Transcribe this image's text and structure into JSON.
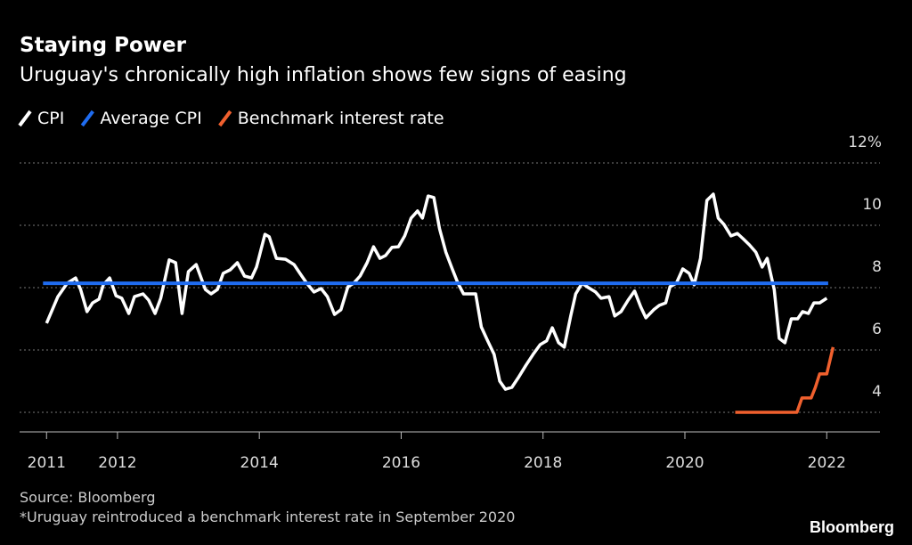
{
  "chart_data": {
    "type": "line",
    "title": "Staying Power",
    "subtitle": "Uruguay's chronically high inflation shows few signs of easing",
    "source": "Source: Bloomberg",
    "note": "*Uruguay reintroduced a benchmark interest rate in September 2020",
    "brand": "Bloomberg",
    "xlim": [
      2010.62,
      2022.75
    ],
    "xticks": [
      2011,
      2012,
      2014,
      2016,
      2018,
      2020,
      2022
    ],
    "ylim": [
      3.37,
      12
    ],
    "yticks": [
      4,
      6,
      8,
      10,
      {
        "value": 12,
        "label": "12%"
      }
    ],
    "grid": true,
    "series": [
      {
        "name": "CPI",
        "color": "#ffffff",
        "x": [
          2011.0,
          2011.16,
          2011.29,
          2011.41,
          2011.48,
          2011.57,
          2011.65,
          2011.74,
          2011.8,
          2011.89,
          2011.98,
          2012.06,
          2012.16,
          2012.24,
          2012.36,
          2012.44,
          2012.53,
          2012.61,
          2012.73,
          2012.82,
          2012.91,
          2013.0,
          2013.11,
          2013.24,
          2013.32,
          2013.41,
          2013.49,
          2013.59,
          2013.69,
          2013.79,
          2013.89,
          2013.96,
          2014.08,
          2014.14,
          2014.24,
          2014.37,
          2014.49,
          2014.58,
          2014.67,
          2014.77,
          2014.87,
          2014.96,
          2015.06,
          2015.15,
          2015.25,
          2015.33,
          2015.42,
          2015.52,
          2015.61,
          2015.7,
          2015.78,
          2015.87,
          2015.96,
          2016.05,
          2016.14,
          2016.23,
          2016.3,
          2016.38,
          2016.46,
          2016.54,
          2016.63,
          2016.72,
          2016.8,
          2016.88,
          2016.97,
          2017.05,
          2017.13,
          2017.22,
          2017.31,
          2017.39,
          2017.47,
          2017.56,
          2017.66,
          2017.76,
          2017.86,
          2017.96,
          2018.05,
          2018.13,
          2018.22,
          2018.3,
          2018.39,
          2018.46,
          2018.55,
          2018.64,
          2018.74,
          2018.82,
          2018.93,
          2019.01,
          2019.1,
          2019.2,
          2019.29,
          2019.38,
          2019.45,
          2019.56,
          2019.64,
          2019.73,
          2019.79,
          2019.88,
          2019.97,
          2020.06,
          2020.13,
          2020.22,
          2020.31,
          2020.4,
          2020.47,
          2020.55,
          2020.65,
          2020.74,
          2020.82,
          2020.91,
          2021.0,
          2021.09,
          2021.16,
          2021.26,
          2021.33,
          2021.41,
          2021.5,
          2021.59,
          2021.66,
          2021.74,
          2021.82,
          2021.9,
          2022.0
        ],
        "values": [
          6.86,
          7.71,
          8.14,
          8.31,
          7.94,
          7.23,
          7.51,
          7.63,
          8.09,
          8.31,
          7.74,
          7.66,
          7.17,
          7.71,
          7.8,
          7.6,
          7.17,
          7.66,
          8.89,
          8.8,
          7.17,
          8.51,
          8.74,
          7.94,
          7.8,
          7.94,
          8.46,
          8.57,
          8.8,
          8.37,
          8.31,
          8.66,
          9.71,
          9.63,
          8.94,
          8.91,
          8.74,
          8.43,
          8.14,
          7.86,
          7.97,
          7.71,
          7.14,
          7.29,
          8.03,
          8.14,
          8.37,
          8.8,
          9.31,
          8.94,
          9.03,
          9.29,
          9.31,
          9.66,
          10.23,
          10.46,
          10.23,
          10.94,
          10.89,
          9.89,
          9.14,
          8.6,
          8.14,
          7.8,
          7.8,
          7.8,
          6.74,
          6.29,
          5.86,
          5.0,
          4.74,
          4.8,
          5.14,
          5.51,
          5.86,
          6.17,
          6.29,
          6.71,
          6.23,
          6.09,
          7.09,
          7.8,
          8.14,
          8.0,
          7.86,
          7.66,
          7.71,
          7.09,
          7.23,
          7.6,
          7.89,
          7.37,
          7.03,
          7.29,
          7.43,
          7.51,
          8.03,
          8.14,
          8.6,
          8.46,
          8.09,
          8.94,
          10.8,
          11.0,
          10.23,
          10.03,
          9.66,
          9.74,
          9.57,
          9.37,
          9.14,
          8.66,
          8.94,
          7.94,
          6.37,
          6.23,
          7.0,
          7.0,
          7.23,
          7.17,
          7.51,
          7.51,
          7.66
        ]
      },
      {
        "name": "Average CPI",
        "color": "#1f6cf0",
        "x": [
          2010.95,
          2022.02
        ],
        "values": [
          8.14,
          8.14
        ]
      },
      {
        "name": "Benchmark interest rate",
        "color": "#f0602e",
        "x": [
          2020.71,
          2021.58,
          2021.65,
          2021.78,
          2021.84,
          2021.9,
          2022.0,
          2022.09
        ],
        "values": [
          4.0,
          4.0,
          4.46,
          4.46,
          4.8,
          5.23,
          5.23,
          6.09
        ]
      }
    ]
  }
}
